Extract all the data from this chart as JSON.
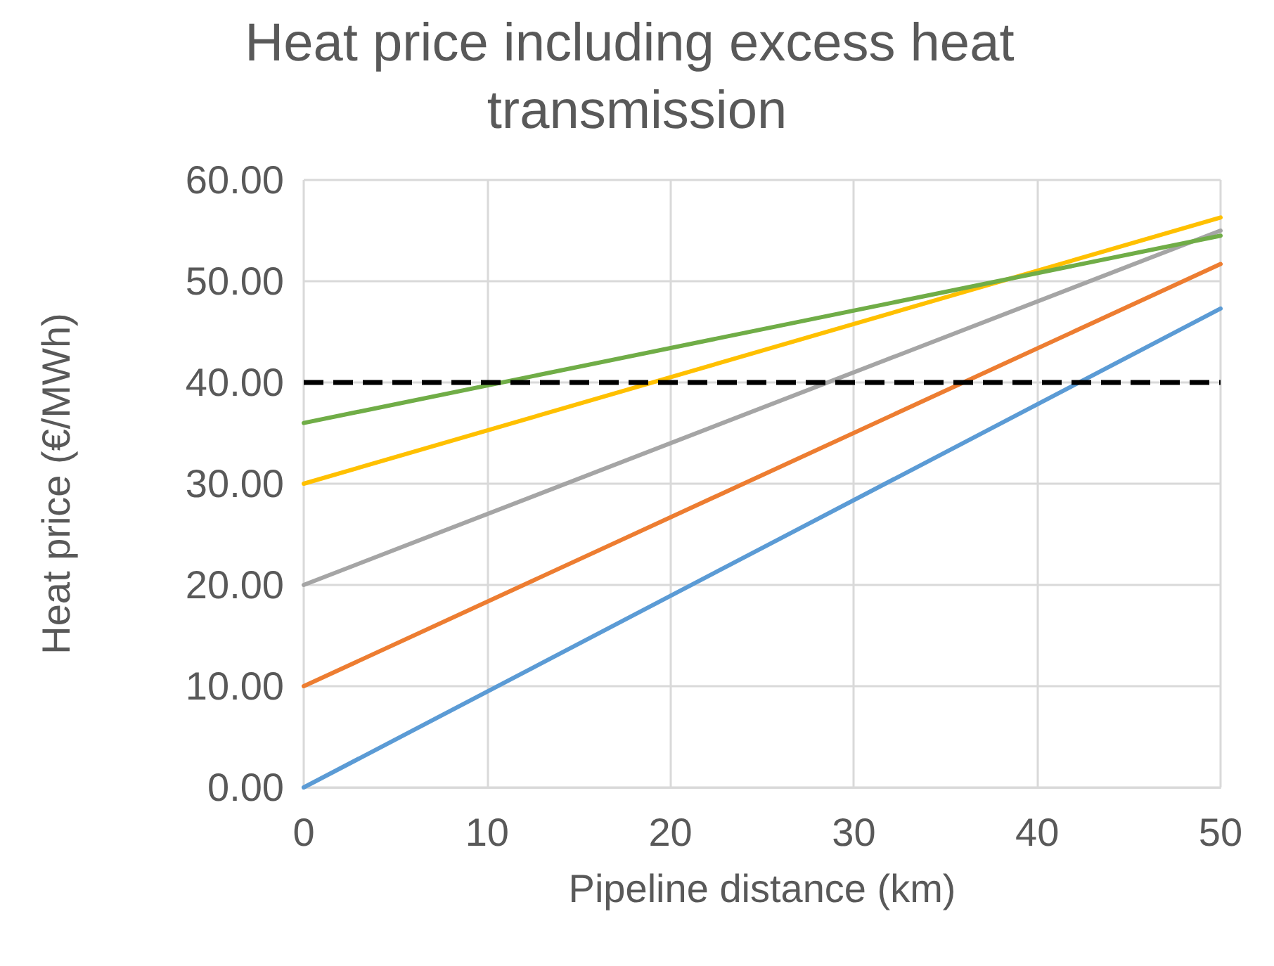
{
  "chart_data": {
    "type": "line",
    "title": "Heat price including excess heat transmission",
    "xlabel": "Pipeline distance (km)",
    "ylabel": "Heat price (€/MWh)",
    "x": [
      0,
      50
    ],
    "series": [
      {
        "color": "#5b9bd5",
        "values": [
          0,
          47.3
        ]
      },
      {
        "color": "#ed7d31",
        "values": [
          10,
          51.7
        ]
      },
      {
        "color": "#a5a5a5",
        "values": [
          20,
          55
        ]
      },
      {
        "color": "#ffc000",
        "values": [
          30,
          56.3
        ]
      },
      {
        "color": "#70ad47",
        "values": [
          36,
          54.5
        ]
      }
    ],
    "xlim": [
      0,
      50
    ],
    "xticks": [
      0,
      10,
      20,
      30,
      40,
      50
    ],
    "ylim": [
      0,
      60
    ],
    "yticks": [
      {
        "value": 0,
        "label": "0.00"
      },
      {
        "value": 10,
        "label": "10.00"
      },
      {
        "value": 20,
        "label": "20.00"
      },
      {
        "value": 30,
        "label": "30.00"
      },
      {
        "value": 40,
        "label": "40.00"
      },
      {
        "value": 50,
        "label": "50.00"
      },
      {
        "value": 60,
        "label": "60.00"
      }
    ],
    "ref_lines": [
      {
        "axis": "y",
        "value": 40,
        "color": "#000000",
        "line_style": "dashed"
      }
    ],
    "grid": true,
    "marker": "none",
    "line_style": "solid"
  }
}
